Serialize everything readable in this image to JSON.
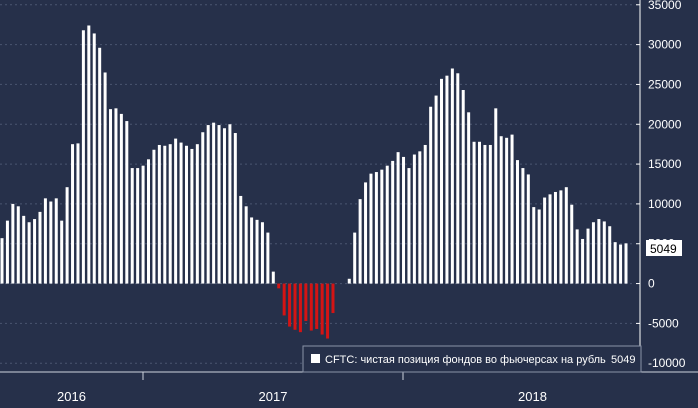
{
  "chart_data": {
    "type": "bar",
    "x_period_labels": [
      "2016",
      "2017",
      "2018"
    ],
    "y_ticks": [
      -10000,
      -5000,
      0,
      5000,
      10000,
      15000,
      20000,
      25000,
      30000,
      35000
    ],
    "ylim": [
      -10600,
      35600
    ],
    "last_value_label": "5049",
    "series": [
      {
        "name": "CFTC: чистая позиция фондов во фьючерсах на рубль",
        "legend_value": "5049",
        "values": [
          5700,
          7900,
          10000,
          9700,
          8500,
          7700,
          8100,
          9000,
          10700,
          10300,
          10700,
          7900,
          12100,
          17500,
          17600,
          31800,
          32400,
          31400,
          29600,
          26500,
          21900,
          22000,
          21300,
          20400,
          14500,
          14500,
          14800,
          15600,
          16800,
          17400,
          17300,
          17500,
          18200,
          17700,
          17300,
          16900,
          17500,
          19000,
          19900,
          20200,
          19900,
          19500,
          20000,
          18900,
          11000,
          9700,
          8300,
          8000,
          7700,
          6400,
          1500,
          -600,
          -4000,
          -5400,
          -5800,
          -6100,
          -4700,
          -5900,
          -5700,
          -6400,
          -6900,
          -3700,
          0,
          0,
          600,
          6400,
          10600,
          12700,
          13800,
          14000,
          14300,
          14800,
          15400,
          16500,
          15900,
          14500,
          16200,
          16600,
          17400,
          22200,
          23600,
          25700,
          26100,
          27000,
          26400,
          24300,
          21500,
          17800,
          17800,
          17400,
          17400,
          22000,
          18500,
          18300,
          18700,
          15500,
          14500,
          13700,
          9600,
          9300,
          10800,
          11200,
          11500,
          11700,
          12100,
          9900,
          6800,
          5600,
          6900,
          7700,
          8100,
          7800,
          7200,
          5200,
          4900,
          5049
        ]
      }
    ],
    "colors": {
      "background": "#26304a",
      "positive_bar": "#ffffff",
      "negative_bar": "#d41414"
    }
  }
}
